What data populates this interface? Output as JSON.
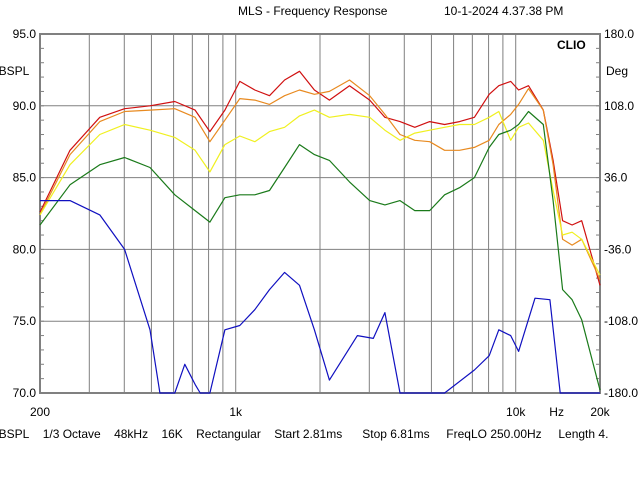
{
  "header": {
    "title": "MLS - Frequency Response",
    "timestamp": "10-1-2024 4.37.38 PM"
  },
  "footer": {
    "unit": "dBSPL",
    "smoothing": "1/3 Octave",
    "sample_rate": "48kHz",
    "size": "16K",
    "window": "Rectangular",
    "start": "Start 2.81ms",
    "stop": "Stop 6.81ms",
    "freqlo": "FreqLO 250.00Hz",
    "length": "Length 4."
  },
  "chart_data": {
    "type": "line",
    "title": "MLS - Frequency Response",
    "brand": "CLIO",
    "xlabel": "Hz",
    "ylabel": "dBSPL",
    "y2label": "Deg",
    "xscale": "log",
    "xlim": [
      200,
      20000
    ],
    "ylim": [
      70,
      95
    ],
    "y2lim": [
      -180,
      180
    ],
    "grid": true,
    "x_tick_labels": [
      "200",
      "1k",
      "10k",
      "Hz",
      "20k"
    ],
    "y_ticks": [
      "95.0",
      "90.0",
      "85.0",
      "80.0",
      "75.0",
      "70.0"
    ],
    "y2_ticks": [
      "180.0",
      "108.0",
      "36.0",
      "-36.0",
      "-108.0",
      "-180.0"
    ],
    "freqs": [
      200,
      256,
      327,
      401,
      494,
      606,
      716,
      809,
      915,
      1034,
      1170,
      1320,
      1495,
      1690,
      1910,
      2160,
      2550,
      3010,
      3410,
      3860,
      4360,
      4930,
      5570,
      6300,
      7120,
      8040,
      8700,
      9600,
      10240,
      11110,
      12550,
      13600,
      14700,
      15900,
      17200,
      20000
    ],
    "series": [
      {
        "name": "red",
        "color": "#d01010",
        "values": [
          82.6,
          86.9,
          89.2,
          89.8,
          90.0,
          90.3,
          89.7,
          88.2,
          89.7,
          91.7,
          91.1,
          90.7,
          91.8,
          92.4,
          91.1,
          90.4,
          91.4,
          90.4,
          89.2,
          88.9,
          88.5,
          88.9,
          88.7,
          88.9,
          89.2,
          90.8,
          91.4,
          91.7,
          91.1,
          91.4,
          89.7,
          86.2,
          82.0,
          81.7,
          82.0,
          77.5
        ]
      },
      {
        "name": "orange",
        "color": "#e88a20",
        "values": [
          82.4,
          86.6,
          88.9,
          89.6,
          89.7,
          89.8,
          89.2,
          87.5,
          89.0,
          90.5,
          90.4,
          90.1,
          90.7,
          91.1,
          90.8,
          91.0,
          91.8,
          90.7,
          89.4,
          88.0,
          87.6,
          87.5,
          86.9,
          86.9,
          87.1,
          87.6,
          88.7,
          89.4,
          90.1,
          91.2,
          89.7,
          85.9,
          80.7,
          80.3,
          80.7,
          77.9
        ]
      },
      {
        "name": "yellow",
        "color": "#f0f020",
        "values": [
          82.4,
          85.9,
          88.0,
          88.7,
          88.3,
          87.8,
          86.9,
          85.4,
          87.3,
          87.9,
          87.5,
          88.2,
          88.5,
          89.3,
          89.7,
          89.2,
          89.4,
          89.2,
          88.3,
          87.6,
          88.1,
          88.3,
          88.5,
          88.7,
          88.7,
          89.2,
          89.6,
          87.6,
          88.5,
          88.8,
          87.6,
          84.1,
          81.0,
          81.2,
          80.7,
          78.2
        ]
      },
      {
        "name": "green",
        "color": "#1a7a1a",
        "values": [
          81.7,
          84.5,
          85.9,
          86.4,
          85.7,
          83.8,
          82.7,
          81.9,
          83.6,
          83.8,
          83.8,
          84.1,
          85.7,
          87.3,
          86.6,
          86.2,
          84.7,
          83.4,
          83.1,
          83.4,
          82.7,
          82.7,
          83.8,
          84.3,
          85.0,
          87.1,
          88.0,
          88.3,
          88.7,
          89.6,
          88.7,
          83.4,
          77.2,
          76.5,
          75.1,
          70.2
        ]
      }
    ],
    "blue_series": {
      "name": "blue",
      "color": "#1010c0",
      "points": [
        [
          200,
          83.4
        ],
        [
          256,
          83.4
        ],
        [
          327,
          82.4
        ],
        [
          401,
          80.0
        ],
        [
          494,
          74.4
        ],
        [
          536,
          70.0
        ],
        [
          606,
          70.0
        ],
        [
          658,
          72.0
        ],
        [
          716,
          70.6
        ],
        [
          747,
          70.0
        ],
        [
          809,
          70.0
        ],
        [
          915,
          74.4
        ],
        [
          1034,
          74.7
        ],
        [
          1170,
          75.8
        ],
        [
          1320,
          77.2
        ],
        [
          1495,
          78.4
        ],
        [
          1690,
          77.5
        ],
        [
          1910,
          74.4
        ],
        [
          2160,
          70.9
        ],
        [
          2720,
          74.0
        ],
        [
          3100,
          73.8
        ],
        [
          3410,
          75.6
        ],
        [
          3860,
          70.0
        ],
        [
          4930,
          70.0
        ],
        [
          5570,
          70.0
        ],
        [
          7120,
          71.6
        ],
        [
          8040,
          72.6
        ],
        [
          8700,
          74.4
        ],
        [
          9600,
          74.0
        ],
        [
          10240,
          72.9
        ],
        [
          11720,
          76.6
        ],
        [
          13250,
          76.5
        ],
        [
          14420,
          70.0
        ],
        [
          20000,
          70.0
        ]
      ]
    }
  }
}
